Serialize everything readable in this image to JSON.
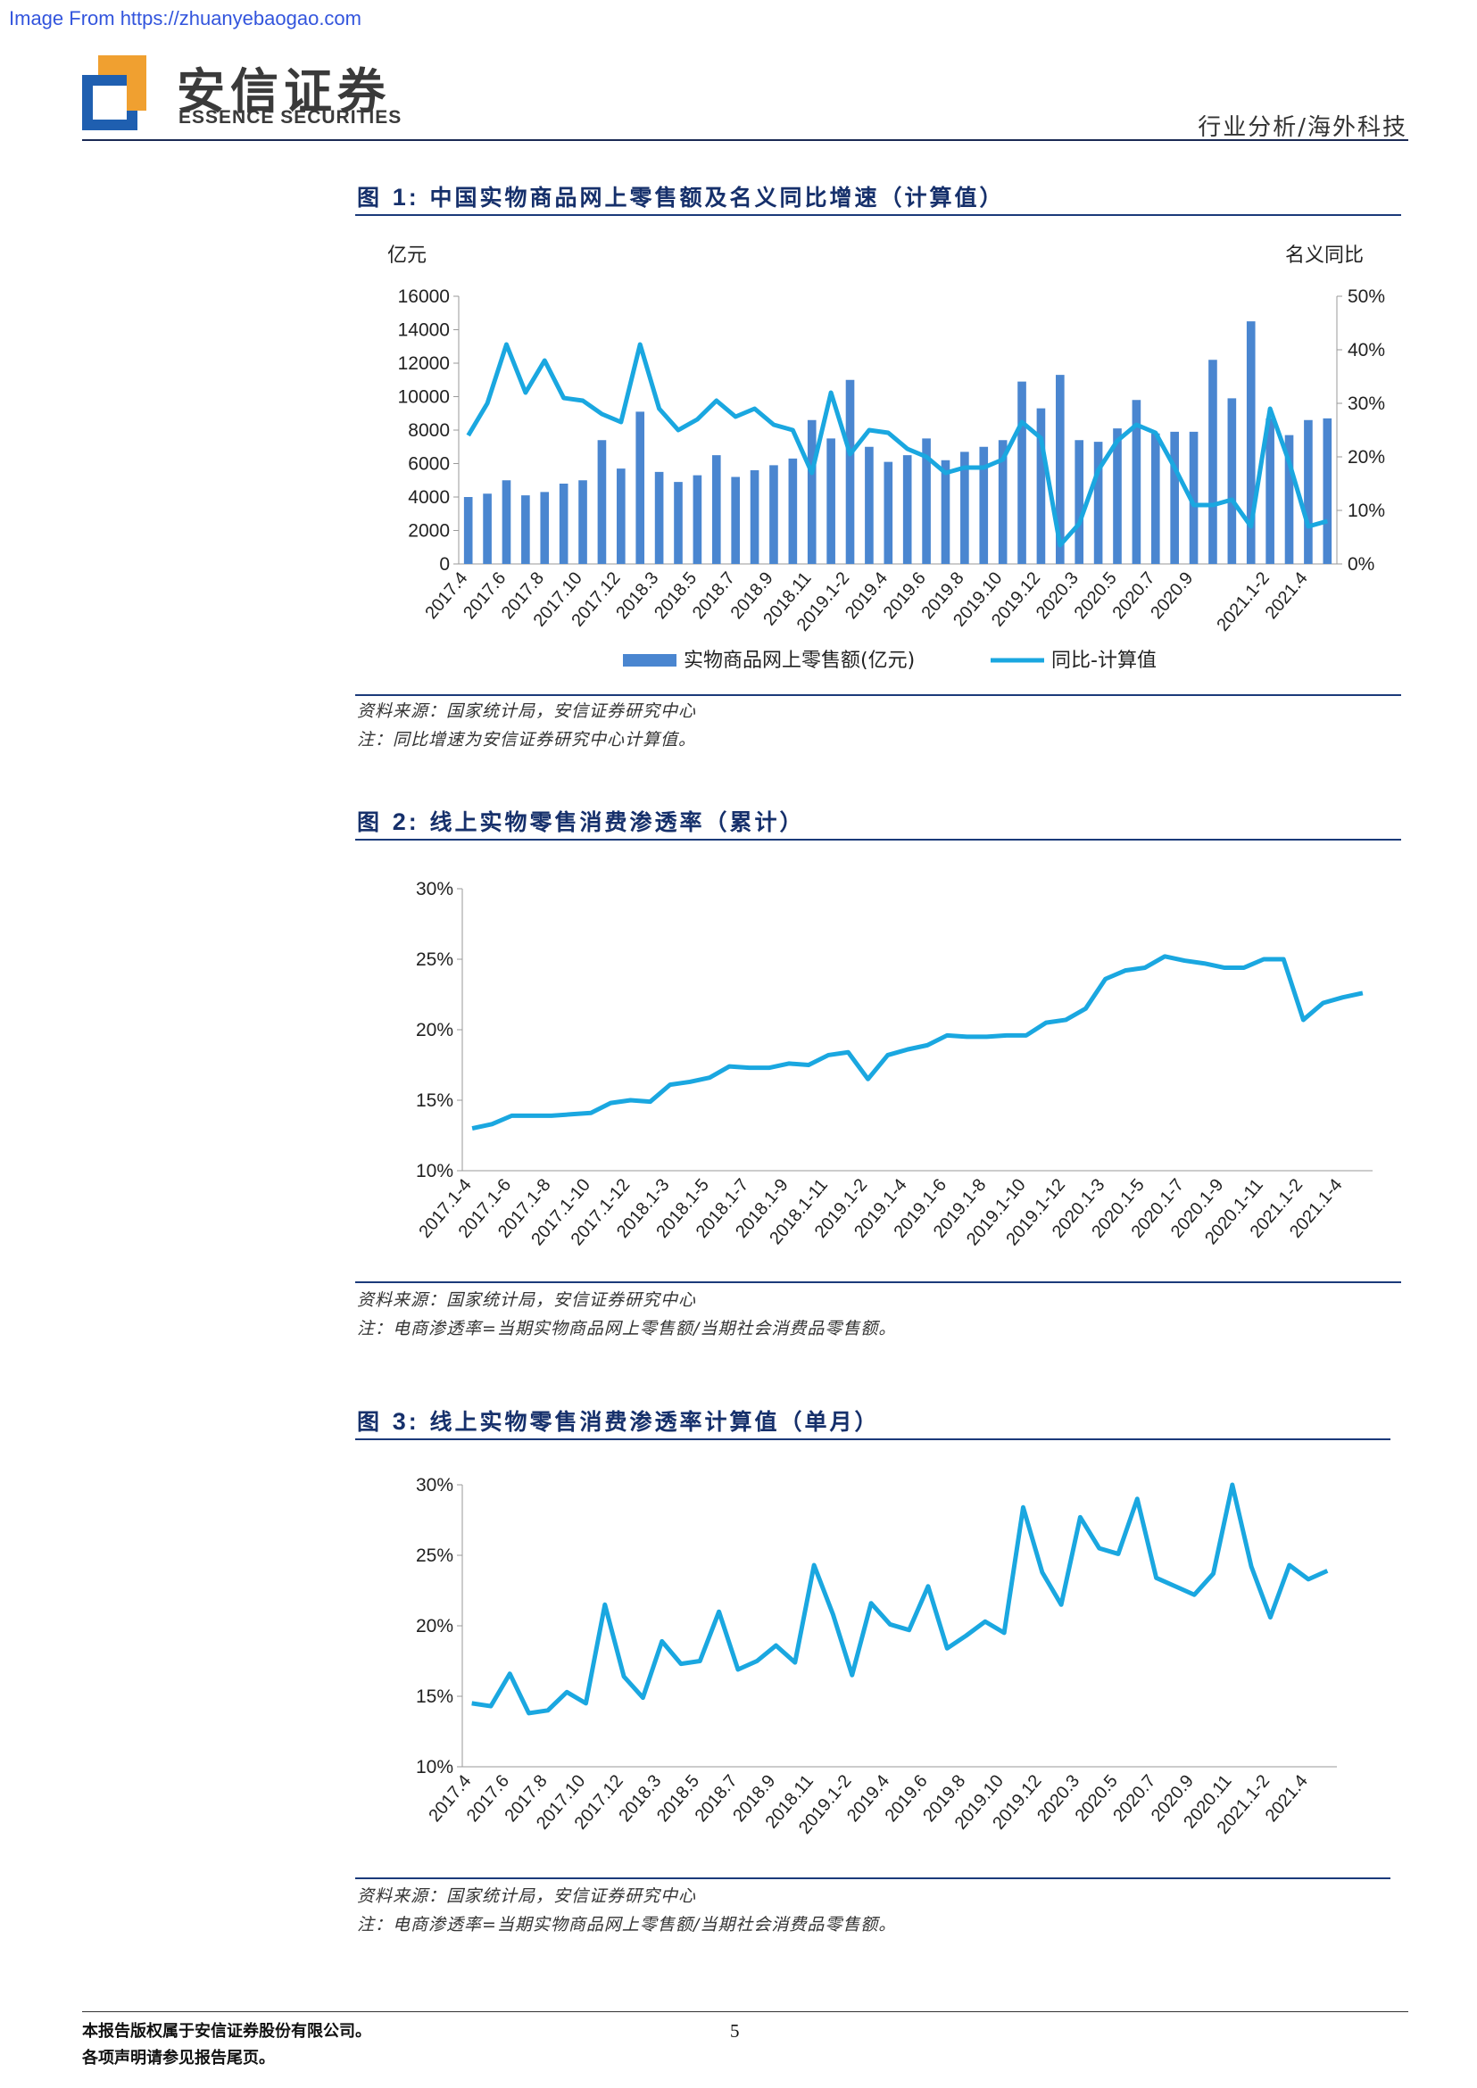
{
  "header": {
    "watermark": "Image From https://zhuanyebaogao.com",
    "brand_cn": "安信证券",
    "brand_en": "ESSENCE SECURITIES",
    "category": "行业分析/海外科技",
    "colors": {
      "navy": "#1b3a7a",
      "logo_orange": "#f0a030",
      "logo_blue": "#1f5fb0"
    }
  },
  "figures": [
    {
      "label": "图",
      "number": "1:",
      "title": "中国实物商品网上零售额及名义同比增速（计算值）",
      "left_axis_unit": "亿元",
      "right_axis_unit": "名义同比",
      "source": "资料来源：国家统计局，安信证券研究中心",
      "note": "注：同比增速为安信证券研究中心计算值。"
    },
    {
      "label": "图",
      "number": "2:",
      "title": "线上实物零售消费渗透率（累计）",
      "source": "资料来源：国家统计局，安信证券研究中心",
      "note": "注：电商渗透率=当期实物商品网上零售额/当期社会消费品零售额。"
    },
    {
      "label": "图",
      "number": "3:",
      "title": "线上实物零售消费渗透率计算值（单月）",
      "source": "资料来源：国家统计局，安信证券研究中心",
      "note": "注：电商渗透率=当期实物商品网上零售额/当期社会消费品零售额。"
    }
  ],
  "footer": {
    "copyright": "本报告版权属于安信证券股份有限公司。",
    "disclaimer": "各项声明请参见报告尾页。",
    "page": "5"
  },
  "chart_data": [
    {
      "type": "bar+line",
      "bar_color": "#4a86d0",
      "line_color": "#1aa7e0",
      "x": [
        "2017.4",
        "2017.5",
        "2017.6",
        "2017.7",
        "2017.8",
        "2017.9",
        "2017.10",
        "2017.11",
        "2017.12",
        "2018.1-2",
        "2018.3",
        "2018.4",
        "2018.5",
        "2018.6",
        "2018.7",
        "2018.8",
        "2018.9",
        "2018.10",
        "2018.11",
        "2018.12",
        "2019.1-2",
        "2019.3",
        "2019.4",
        "2019.5",
        "2019.6",
        "2019.7",
        "2019.8",
        "2019.9",
        "2019.10",
        "2019.11",
        "2019.12",
        "2020.1-2",
        "2020.3",
        "2020.4",
        "2020.5",
        "2020.6",
        "2020.7",
        "2020.8",
        "2020.9",
        "2020.10",
        "2020.11",
        "2020.12",
        "2021.1-2",
        "2021.3",
        "2021.4",
        "2021.5"
      ],
      "x_tick_labels": [
        "2017.4",
        "2017.6",
        "2017.8",
        "2017.10",
        "2017.12",
        "2018.3",
        "2018.5",
        "2018.7",
        "2018.9",
        "2018.11",
        "2019.1-2",
        "2019.4",
        "2019.6",
        "2019.8",
        "2019.10",
        "2019.12",
        "2020.3",
        "2020.5",
        "2020.7",
        "2020.9",
        "2021.1-2",
        "2021.4"
      ],
      "series": [
        {
          "name": "实物商品网上零售额(亿元)",
          "type": "bar",
          "axis": "left",
          "values": [
            4000,
            4200,
            5000,
            4100,
            4300,
            4800,
            5000,
            7400,
            5700,
            9100,
            5500,
            4900,
            5300,
            6500,
            5200,
            5600,
            5900,
            6300,
            8600,
            7500,
            11000,
            7000,
            6100,
            6500,
            7500,
            6200,
            6700,
            7000,
            7400,
            10900,
            9300,
            11300,
            7400,
            7300,
            8100,
            9800,
            7800,
            7900,
            7900,
            12200,
            9900,
            14500,
            8700,
            7700,
            8600,
            8700
          ]
        },
        {
          "name": "同比-计算值",
          "type": "line",
          "axis": "right",
          "values": [
            24,
            30,
            41,
            32,
            38,
            31,
            30.5,
            28,
            26.5,
            41,
            29,
            25,
            27,
            30.5,
            27.5,
            29,
            26,
            25,
            17,
            32,
            20.5,
            25,
            24.5,
            21.5,
            20,
            17,
            18,
            18,
            19.5,
            26.5,
            23.5,
            3.5,
            7.5,
            17.5,
            23,
            26,
            24.5,
            18,
            11,
            11,
            12,
            7,
            29,
            19,
            7,
            8
          ]
        }
      ],
      "left_axis_ticks": [
        "0",
        "2000",
        "4000",
        "6000",
        "8000",
        "10000",
        "12000",
        "14000",
        "16000"
      ],
      "right_axis_ticks": [
        "0%",
        "10%",
        "20%",
        "30%",
        "40%",
        "50%"
      ],
      "ylim_left": [
        0,
        16000
      ],
      "ylim_right": [
        0,
        50
      ],
      "legend_position": "bottom"
    },
    {
      "type": "line",
      "line_color": "#1aa7e0",
      "x": [
        "2017.1-4",
        "2017.1-5",
        "2017.1-6",
        "2017.1-7",
        "2017.1-8",
        "2017.1-9",
        "2017.1-10",
        "2017.1-11",
        "2017.1-12",
        "2018.1-2",
        "2018.1-3",
        "2018.1-4",
        "2018.1-5",
        "2018.1-6",
        "2018.1-7",
        "2018.1-8",
        "2018.1-9",
        "2018.1-10",
        "2018.1-11",
        "2018.1-12",
        "2019.1-2",
        "2019.1-3",
        "2019.1-4",
        "2019.1-5",
        "2019.1-6",
        "2019.1-7",
        "2019.1-8",
        "2019.1-9",
        "2019.1-10",
        "2019.1-11",
        "2019.1-12",
        "2020.1-2",
        "2020.1-3",
        "2020.1-4",
        "2020.1-5",
        "2020.1-6",
        "2020.1-7",
        "2020.1-8",
        "2020.1-9",
        "2020.1-10",
        "2020.1-11",
        "2020.1-12",
        "2021.1-2",
        "2021.1-3",
        "2021.1-4",
        "2021.1-5"
      ],
      "x_tick_labels": [
        "2017.1-4",
        "2017.1-6",
        "2017.1-8",
        "2017.1-10",
        "2017.1-12",
        "2018.1-3",
        "2018.1-5",
        "2018.1-7",
        "2018.1-9",
        "2018.1-11",
        "2019.1-2",
        "2019.1-4",
        "2019.1-6",
        "2019.1-8",
        "2019.1-10",
        "2019.1-12",
        "2020.1-3",
        "2020.1-5",
        "2020.1-7",
        "2020.1-9",
        "2020.1-11",
        "2021.1-2",
        "2021.1-4"
      ],
      "series": [
        {
          "name": "",
          "values": [
            13.0,
            13.3,
            13.9,
            13.9,
            13.9,
            14.0,
            14.1,
            14.8,
            15.0,
            14.9,
            16.1,
            16.3,
            16.6,
            17.4,
            17.3,
            17.3,
            17.6,
            17.5,
            18.2,
            18.4,
            16.5,
            18.2,
            18.6,
            18.9,
            19.6,
            19.5,
            19.5,
            19.6,
            19.6,
            20.5,
            20.7,
            21.5,
            23.6,
            24.2,
            24.4,
            25.2,
            24.9,
            24.7,
            24.4,
            24.4,
            25.0,
            25.0,
            20.7,
            21.9,
            22.3,
            22.6
          ]
        }
      ],
      "y_ticks": [
        "10%",
        "15%",
        "20%",
        "25%",
        "30%"
      ],
      "ylim": [
        10,
        30
      ]
    },
    {
      "type": "line",
      "line_color": "#1aa7e0",
      "x": [
        "2017.4",
        "2017.5",
        "2017.6",
        "2017.7",
        "2017.8",
        "2017.9",
        "2017.10",
        "2017.11",
        "2017.12",
        "2018.1-2",
        "2018.3",
        "2018.4",
        "2018.5",
        "2018.6",
        "2018.7",
        "2018.8",
        "2018.9",
        "2018.10",
        "2018.11",
        "2018.12",
        "2019.1-2",
        "2019.3",
        "2019.4",
        "2019.5",
        "2019.6",
        "2019.7",
        "2019.8",
        "2019.9",
        "2019.10",
        "2019.11",
        "2019.12",
        "2020.1-2",
        "2020.3",
        "2020.4",
        "2020.5",
        "2020.6",
        "2020.7",
        "2020.8",
        "2020.9",
        "2020.10",
        "2020.11",
        "2020.12",
        "2021.1-2",
        "2021.3",
        "2021.4",
        "2021.5"
      ],
      "x_tick_labels": [
        "2017.4",
        "2017.6",
        "2017.8",
        "2017.10",
        "2017.12",
        "2018.3",
        "2018.5",
        "2018.7",
        "2018.9",
        "2018.11",
        "2019.1-2",
        "2019.4",
        "2019.6",
        "2019.8",
        "2019.10",
        "2019.12",
        "2020.3",
        "2020.5",
        "2020.7",
        "2020.9",
        "2020.11",
        "2021.1-2",
        "2021.4"
      ],
      "series": [
        {
          "name": "",
          "values": [
            14.5,
            14.3,
            16.6,
            13.8,
            14.0,
            15.3,
            14.5,
            21.5,
            16.4,
            14.9,
            18.9,
            17.3,
            17.5,
            21.0,
            16.9,
            17.5,
            18.6,
            17.4,
            24.3,
            20.8,
            16.5,
            21.6,
            20.1,
            19.7,
            22.8,
            18.4,
            19.3,
            20.3,
            19.5,
            28.4,
            23.8,
            21.5,
            27.7,
            25.5,
            25.1,
            29.0,
            23.4,
            22.8,
            22.2,
            23.7,
            30.0,
            24.2,
            20.6,
            24.3,
            23.3,
            23.9
          ]
        }
      ],
      "y_ticks": [
        "10%",
        "15%",
        "20%",
        "25%",
        "30%"
      ],
      "ylim": [
        10,
        30
      ]
    }
  ]
}
